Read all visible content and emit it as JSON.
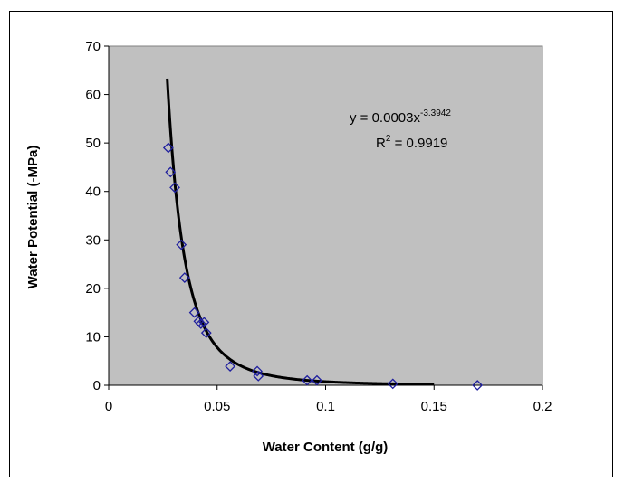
{
  "chart_data": {
    "type": "scatter",
    "xlabel": "Water Content (g/g)",
    "ylabel": "Water Potential (-MPa)",
    "xlim": [
      0,
      0.2
    ],
    "ylim": [
      0,
      70
    ],
    "xticks": [
      "0",
      "0.05",
      "0.1",
      "0.15",
      "0.2"
    ],
    "yticks": [
      "0",
      "10",
      "20",
      "30",
      "40",
      "50",
      "60",
      "70"
    ],
    "grid": false,
    "plot_background": "#c0c0c0",
    "marker_color": "#1f1f9e",
    "trendline_color": "#000000",
    "points": [
      {
        "x": 0.0275,
        "y": 49.0
      },
      {
        "x": 0.0285,
        "y": 44.0
      },
      {
        "x": 0.0305,
        "y": 40.8
      },
      {
        "x": 0.0335,
        "y": 29.0
      },
      {
        "x": 0.035,
        "y": 22.2
      },
      {
        "x": 0.0395,
        "y": 15.0
      },
      {
        "x": 0.0415,
        "y": 13.2
      },
      {
        "x": 0.0425,
        "y": 12.7
      },
      {
        "x": 0.044,
        "y": 13.0
      },
      {
        "x": 0.045,
        "y": 10.8
      },
      {
        "x": 0.056,
        "y": 3.9
      },
      {
        "x": 0.0685,
        "y": 2.9
      },
      {
        "x": 0.069,
        "y": 1.9
      },
      {
        "x": 0.0915,
        "y": 1.0
      },
      {
        "x": 0.096,
        "y": 1.0
      },
      {
        "x": 0.131,
        "y": 0.3
      },
      {
        "x": 0.17,
        "y": 0.0
      }
    ],
    "trendline": {
      "type": "power",
      "coefficient": 0.0003,
      "exponent": -3.3942,
      "x_range": [
        0.027,
        0.15
      ]
    },
    "annotations": {
      "equation_base": "y = 0.0003x",
      "equation_exponent": "-3.3942",
      "r2_base": "R",
      "r2_sup": "2",
      "r2_value": " = 0.9919"
    }
  }
}
